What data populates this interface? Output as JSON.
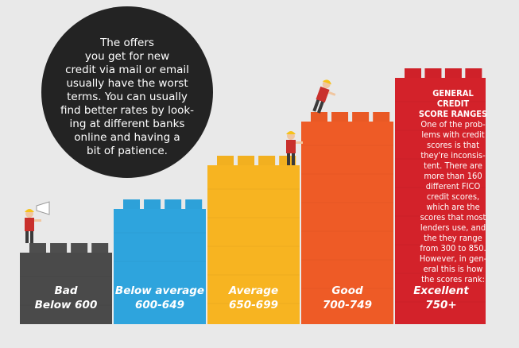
{
  "bubble": {
    "lines": [
      "The offers",
      "you get for new",
      "credit via mail or email",
      "usually have the worst",
      "terms. You can usually",
      "find better rates by look-",
      "ing at different banks",
      "online and having a",
      "bit of patience."
    ]
  },
  "info": {
    "title_lines": [
      "GENERAL",
      "CREDIT",
      "SCORE RANGES"
    ],
    "body_lines": [
      "One of the prob-",
      "lems with credit",
      "scores is that",
      "they're inconsis-",
      "tent. There are",
      "more than 160",
      "different FICO",
      "credit scores,",
      "which are the",
      "scores that most",
      "lenders use, and",
      "the they range",
      "from 300 to 850.",
      "However, in gen-",
      "eral this is how",
      "the scores rank:"
    ]
  },
  "chart_data": {
    "type": "bar",
    "categories": [
      [
        "Bad",
        "Below 600"
      ],
      [
        "Below average",
        "600-649"
      ],
      [
        "Average",
        "650-699"
      ],
      [
        "Good",
        "700-749"
      ],
      [
        "Excellent",
        "750+"
      ]
    ],
    "values": [
      1,
      2,
      3,
      4,
      5
    ],
    "colors": [
      "#4a4a4a",
      "#2ea4dd",
      "#f7b421",
      "#ee5b26",
      "#d3222a"
    ],
    "value_scale": "ordinal rank, no numeric axis shown"
  }
}
